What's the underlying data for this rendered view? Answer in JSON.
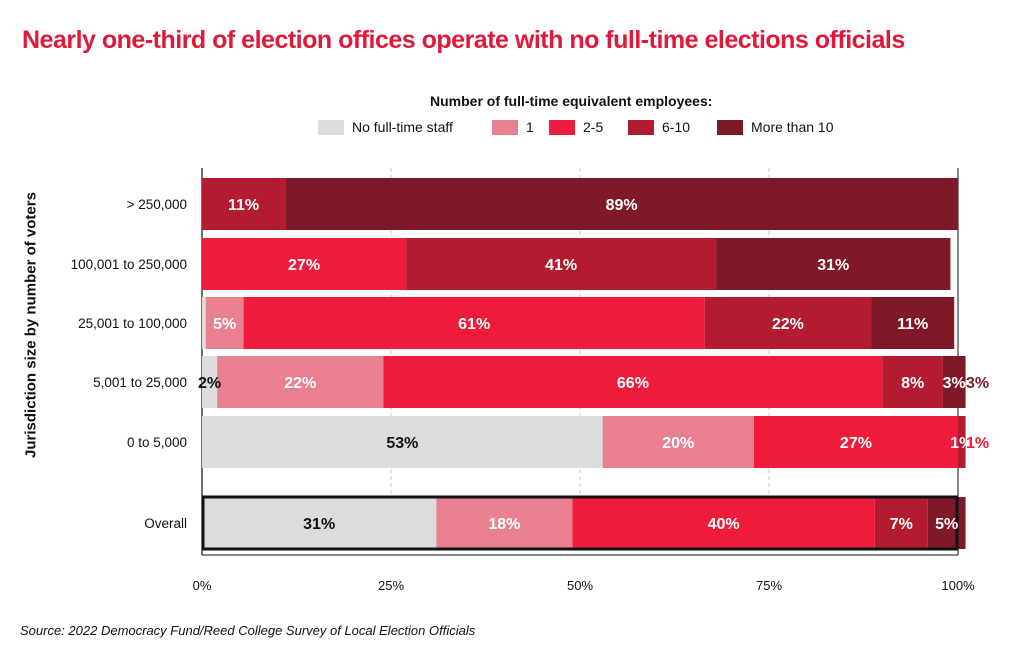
{
  "chart_data": {
    "type": "bar",
    "orientation": "horizontal",
    "stacked": true,
    "title": "Nearly one-third of election offices operate with no full-time elections officials",
    "legend_title": "Number of full-time equivalent employees:",
    "legend_position": "top",
    "ylabel": "Jurisdiction size by number of voters",
    "xlabel": "",
    "xlim": [
      0,
      100
    ],
    "x_ticks": [
      "0%",
      "25%",
      "50%",
      "75%",
      "100%"
    ],
    "grid": true,
    "categories": [
      "> 250,000",
      "100,001 to 250,000",
      "25,001 to 100,000",
      "5,001 to 25,000",
      "0 to 5,000",
      "Overall"
    ],
    "series": [
      {
        "name": "No full-time staff",
        "color": "#dcdcdc",
        "text_color": "#111111",
        "values": [
          0,
          0,
          0.5,
          2,
          53,
          31
        ],
        "labels": [
          "",
          "",
          "",
          "2%",
          "53%",
          "31%"
        ]
      },
      {
        "name": "1",
        "color": "#e8808f",
        "text_color": "#ffffff",
        "values": [
          0,
          0,
          5,
          22,
          20,
          18
        ],
        "labels": [
          "",
          "",
          "5%",
          "22%",
          "20%",
          "18%"
        ]
      },
      {
        "name": "2-5",
        "color": "#ee1c3a",
        "text_color": "#ffffff",
        "values": [
          0,
          27,
          61,
          66,
          27,
          40
        ],
        "labels": [
          "",
          "27%",
          "61%",
          "66%",
          "27%",
          "40%"
        ]
      },
      {
        "name": "6-10",
        "color": "#b31b30",
        "text_color": "#ffffff",
        "values": [
          11,
          41,
          22,
          8,
          1,
          7
        ],
        "labels": [
          "11%",
          "41%",
          "22%",
          "8%",
          "1%",
          "7%"
        ]
      },
      {
        "name": "More than 10",
        "color": "#7f1927",
        "text_color": "#ffffff",
        "values": [
          89,
          31,
          11,
          3,
          0,
          5
        ],
        "labels": [
          "89%",
          "31%",
          "11%",
          "3%",
          "",
          "5%"
        ]
      }
    ],
    "outside_labels": [
      {
        "category": "5,001 to 25,000",
        "series": "More than 10",
        "label": "3%",
        "color": "#7f1927"
      },
      {
        "category": "0 to 5,000",
        "series": "6-10",
        "label": "1%",
        "color": "#ee1c3a"
      }
    ],
    "highlighted_category": "Overall"
  },
  "source": "Source: 2022 Democracy Fund/Reed College Survey of Local Election Officials"
}
